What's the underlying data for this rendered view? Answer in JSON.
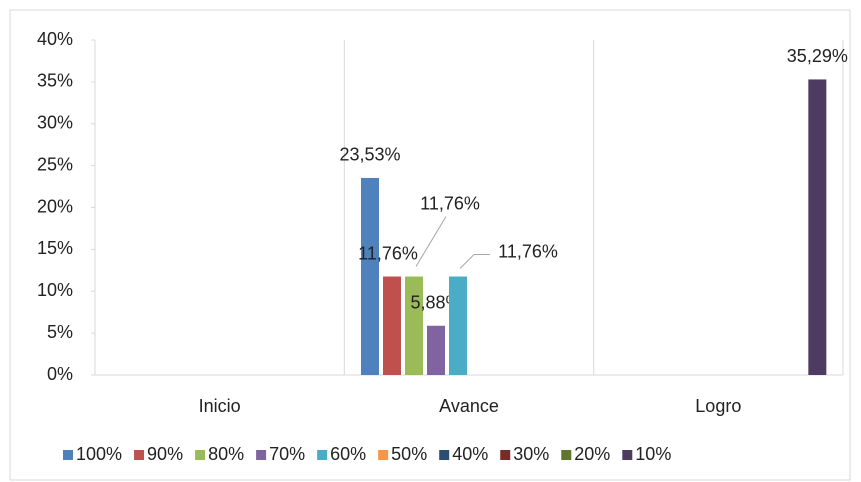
{
  "chart_data": {
    "type": "bar",
    "categories": [
      "Inicio",
      "Avance",
      "Logro"
    ],
    "series": [
      {
        "name": "100%",
        "color": "#4f81bd",
        "values": [
          null,
          23.53,
          null
        ],
        "value_labels": [
          null,
          "23,53%",
          null
        ]
      },
      {
        "name": "90%",
        "color": "#c0504d",
        "values": [
          null,
          11.76,
          null
        ],
        "value_labels": [
          null,
          "11,76%",
          null
        ]
      },
      {
        "name": "80%",
        "color": "#9bbb59",
        "values": [
          null,
          11.76,
          null
        ],
        "value_labels": [
          null,
          "11,76%",
          null
        ]
      },
      {
        "name": "70%",
        "color": "#8064a2",
        "values": [
          null,
          5.88,
          null
        ],
        "value_labels": [
          null,
          "5,88%",
          null
        ]
      },
      {
        "name": "60%",
        "color": "#4bacc6",
        "values": [
          null,
          11.76,
          null
        ],
        "value_labels": [
          null,
          "11,76%",
          null
        ]
      },
      {
        "name": "50%",
        "color": "#f79646",
        "values": [
          null,
          null,
          null
        ]
      },
      {
        "name": "40%",
        "color": "#2c4d75",
        "values": [
          null,
          null,
          null
        ]
      },
      {
        "name": "30%",
        "color": "#772c2a",
        "values": [
          null,
          null,
          null
        ]
      },
      {
        "name": "20%",
        "color": "#5f7530",
        "values": [
          null,
          null,
          null
        ]
      },
      {
        "name": "10%",
        "color": "#4d3b62",
        "values": [
          null,
          null,
          35.29
        ],
        "value_labels": [
          null,
          null,
          "35,29%"
        ]
      }
    ],
    "ylim": [
      0,
      40
    ],
    "yticks": [
      {
        "value": 0,
        "label": "0%"
      },
      {
        "value": 5,
        "label": "5%"
      },
      {
        "value": 10,
        "label": "10%"
      },
      {
        "value": 15,
        "label": "15%"
      },
      {
        "value": 20,
        "label": "20%"
      },
      {
        "value": 25,
        "label": "25%"
      },
      {
        "value": 30,
        "label": "30%"
      },
      {
        "value": 35,
        "label": "35%"
      },
      {
        "value": 40,
        "label": "40%"
      }
    ],
    "legend": "bottom"
  }
}
